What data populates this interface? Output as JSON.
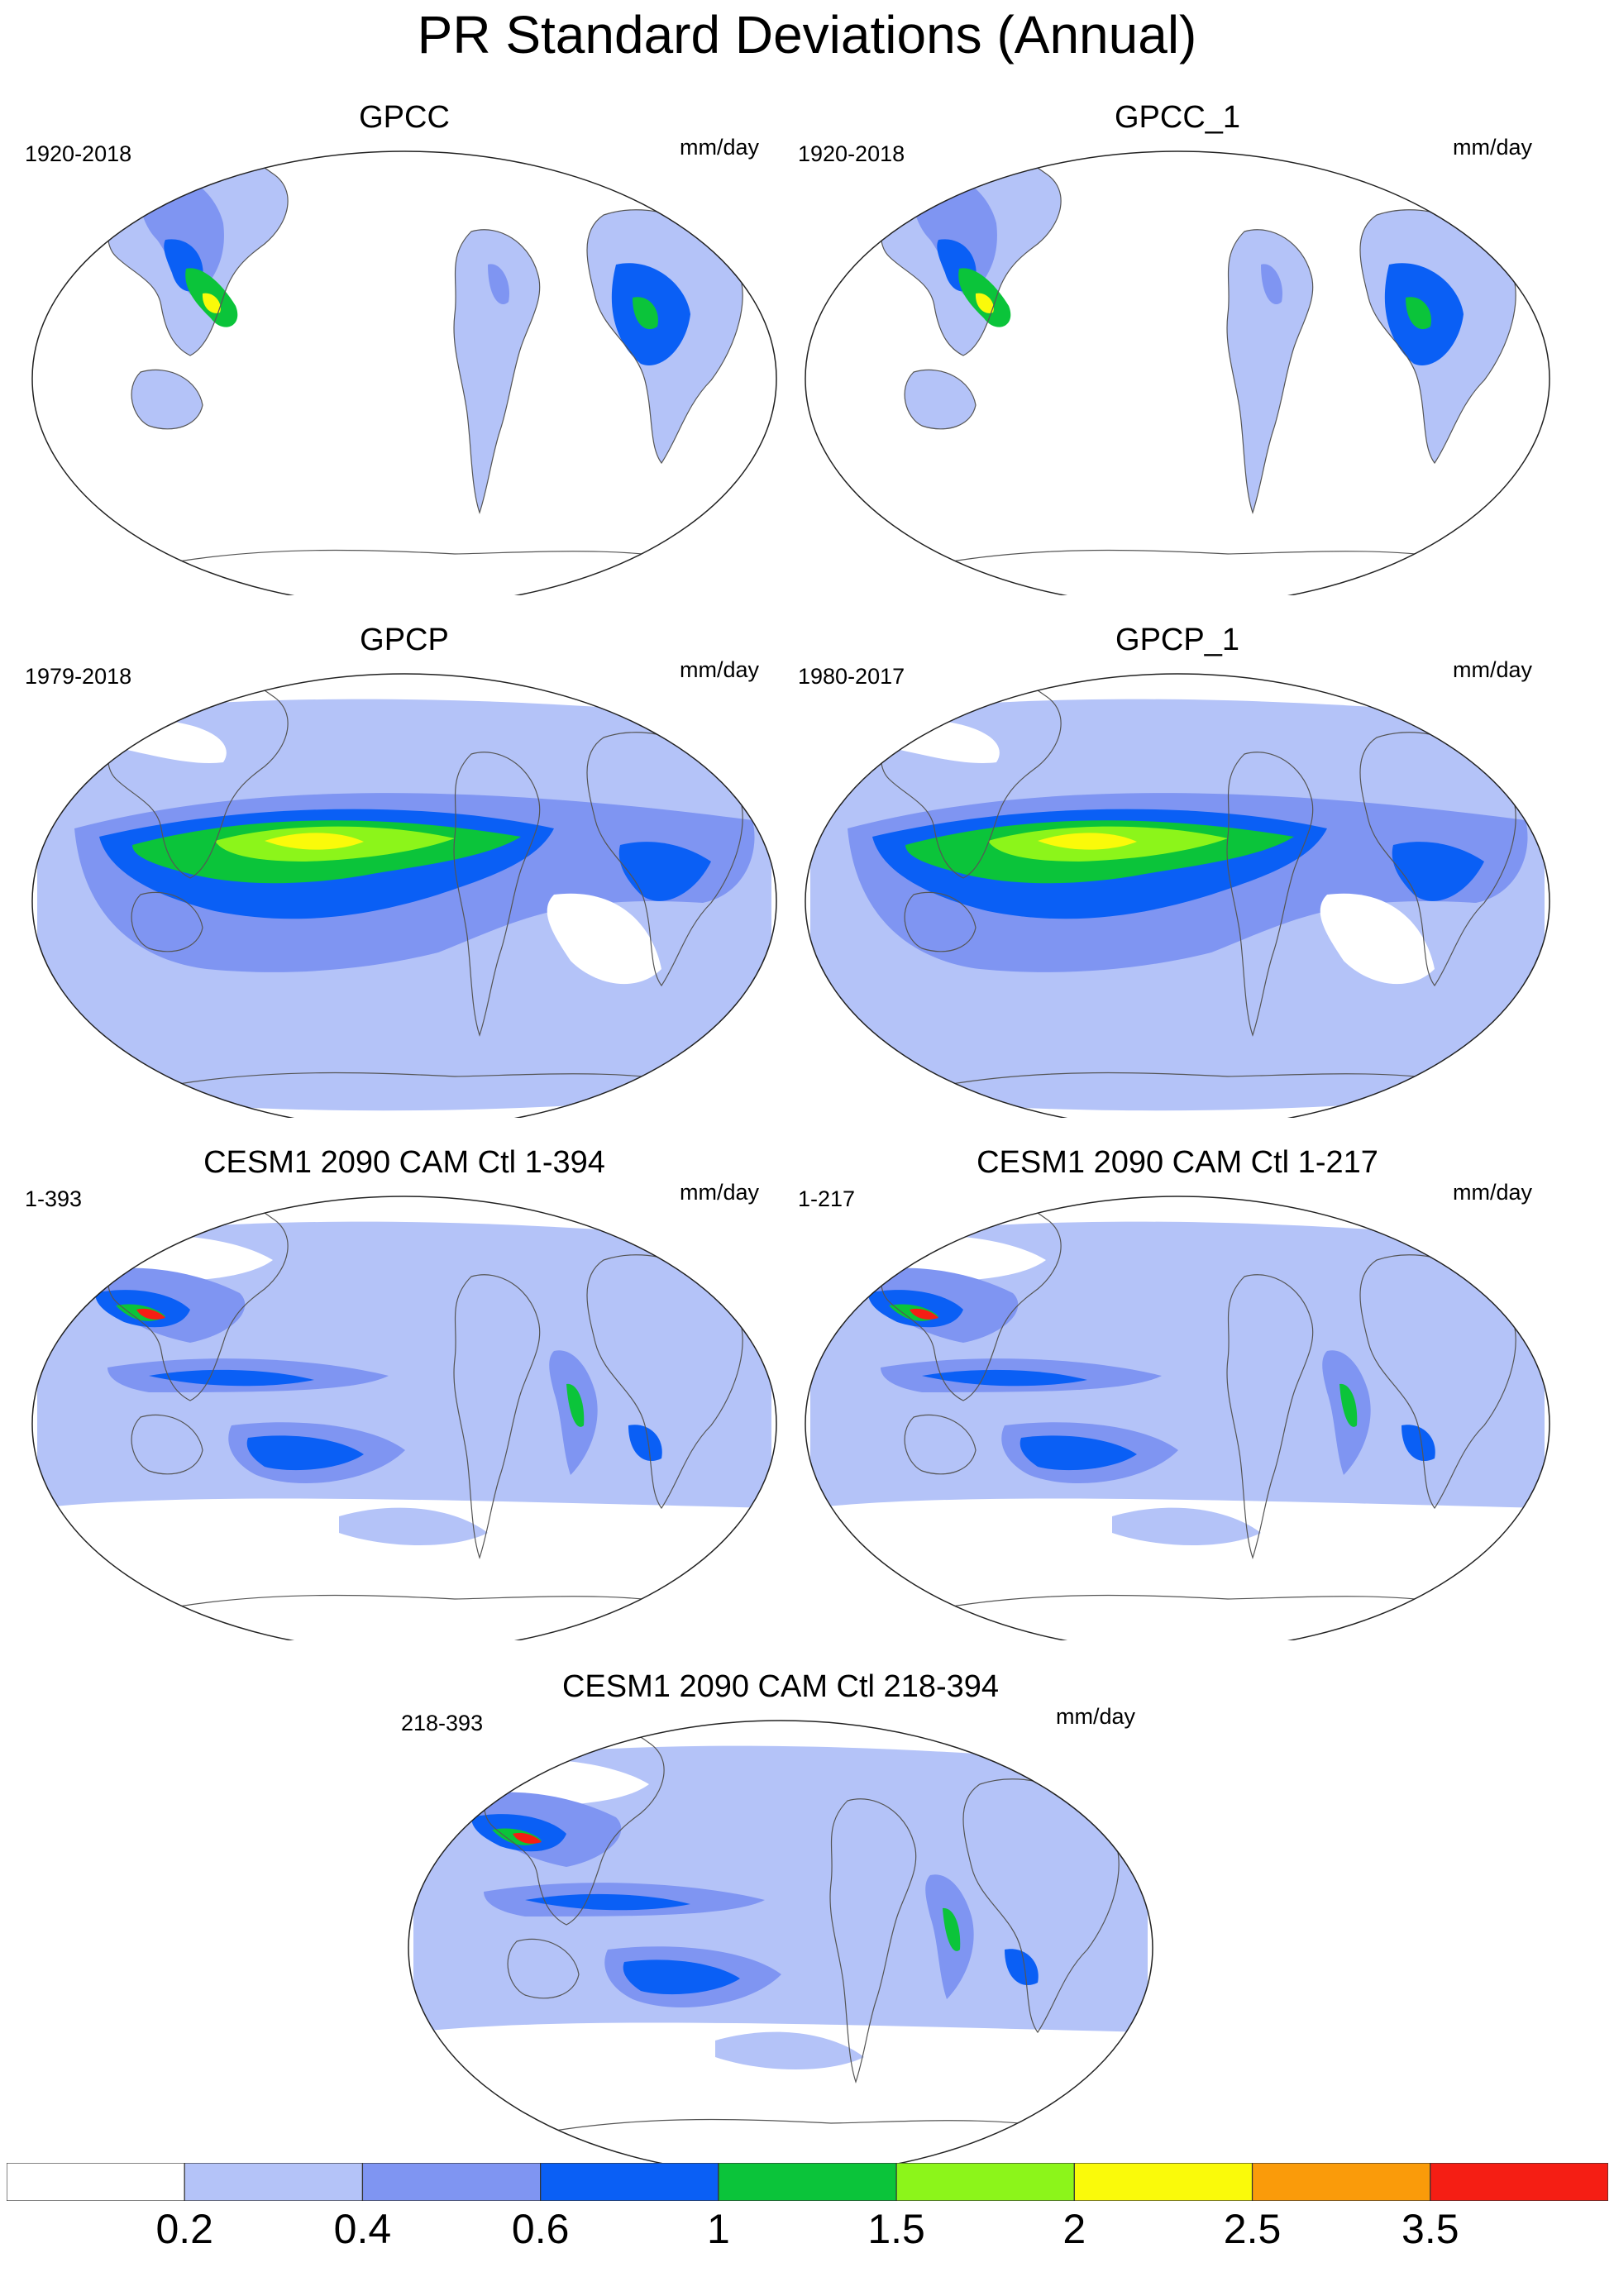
{
  "title": "PR Standard Deviations (Annual)",
  "units": "mm/day",
  "panels": [
    {
      "title": "GPCC",
      "period": "1920-2018",
      "units": "mm/day",
      "pattern": "land"
    },
    {
      "title": "GPCC_1",
      "period": "1920-2018",
      "units": "mm/day",
      "pattern": "land"
    },
    {
      "title": "GPCP",
      "period": "1979-2018",
      "units": "mm/day",
      "pattern": "tropical"
    },
    {
      "title": "GPCP_1",
      "period": "1980-2017",
      "units": "mm/day",
      "pattern": "tropical"
    },
    {
      "title": "CESM1 2090 CAM Ctl 1-394",
      "period": "1-393",
      "units": "mm/day",
      "pattern": "model"
    },
    {
      "title": "CESM1 2090 CAM Ctl 1-217",
      "period": "1-217",
      "units": "mm/day",
      "pattern": "model"
    },
    {
      "title": "CESM1 2090 CAM Ctl 218-394",
      "period": "218-393",
      "units": "mm/day",
      "pattern": "model"
    }
  ],
  "colorbar": {
    "colors": [
      "#ffffff",
      "#b4c3f8",
      "#7f95f2",
      "#0a5ff5",
      "#0bc43a",
      "#8cf51a",
      "#fafa0a",
      "#fa9b0a",
      "#f51e14"
    ],
    "labels": [
      "0.2",
      "0.4",
      "0.6",
      "1",
      "1.5",
      "2",
      "2.5",
      "3.5"
    ]
  }
}
